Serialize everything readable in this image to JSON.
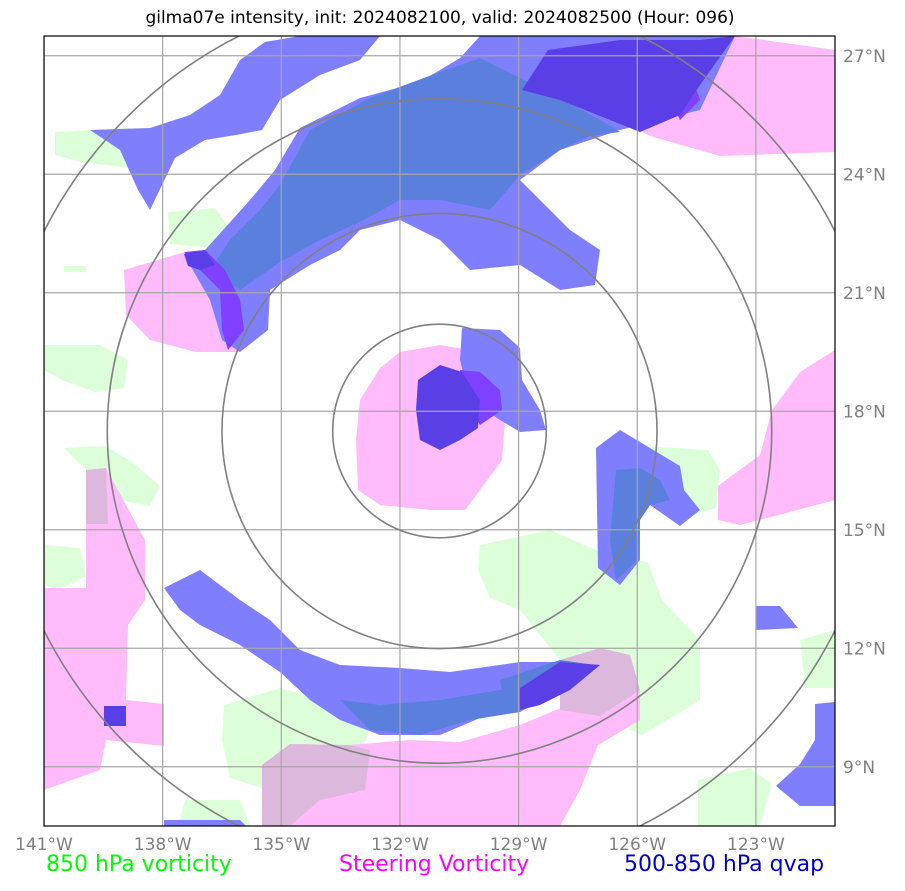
{
  "title": "gilma07e intensity, init: 2024082100, valid: 2024082500 (Hour: 096)",
  "x_ticks": [
    {
      "label": "141°W",
      "lon": -141
    },
    {
      "label": "138°W",
      "lon": -138
    },
    {
      "label": "135°W",
      "lon": -135
    },
    {
      "label": "132°W",
      "lon": -132
    },
    {
      "label": "129°W",
      "lon": -129
    },
    {
      "label": "126°W",
      "lon": -126
    },
    {
      "label": "123°W",
      "lon": -123
    }
  ],
  "y_ticks": [
    {
      "label": "27°N",
      "lat": 27
    },
    {
      "label": "24°N",
      "lat": 24
    },
    {
      "label": "21°N",
      "lat": 21
    },
    {
      "label": "18°N",
      "lat": 18
    },
    {
      "label": "15°N",
      "lat": 15
    },
    {
      "label": "12°N",
      "lat": 12
    },
    {
      "label": "9°N",
      "lat": 9
    }
  ],
  "extent": {
    "lon_min": -141,
    "lon_max": -121,
    "lat_min": 7.5,
    "lat_max": 27.5
  },
  "storm_center": {
    "lon": -131,
    "lat": 17.5
  },
  "range_ring_radii_deg": [
    2.7,
    5.5,
    8.4,
    11.2
  ],
  "legend": {
    "vort850": {
      "label": "850 hPa vorticity",
      "color": "#00ff00"
    },
    "steer": {
      "label": "Steering Vorticity",
      "color": "#ff00ff"
    },
    "qvap": {
      "label": "500-850 hPa qvap",
      "color": "#0000cd"
    }
  },
  "colors": {
    "vort850_fill": "#dcffd9",
    "steer_fill": "#ffbbfa",
    "qvap_fill": "#7f7ffe",
    "overlap_fill": "#5a7fdc",
    "core_fill": "#5a3fe6",
    "violet_fill": "#8040ff",
    "mauve_fill": "#dcb8dc",
    "grid": "#a6a6a6",
    "rings": "#808080"
  }
}
